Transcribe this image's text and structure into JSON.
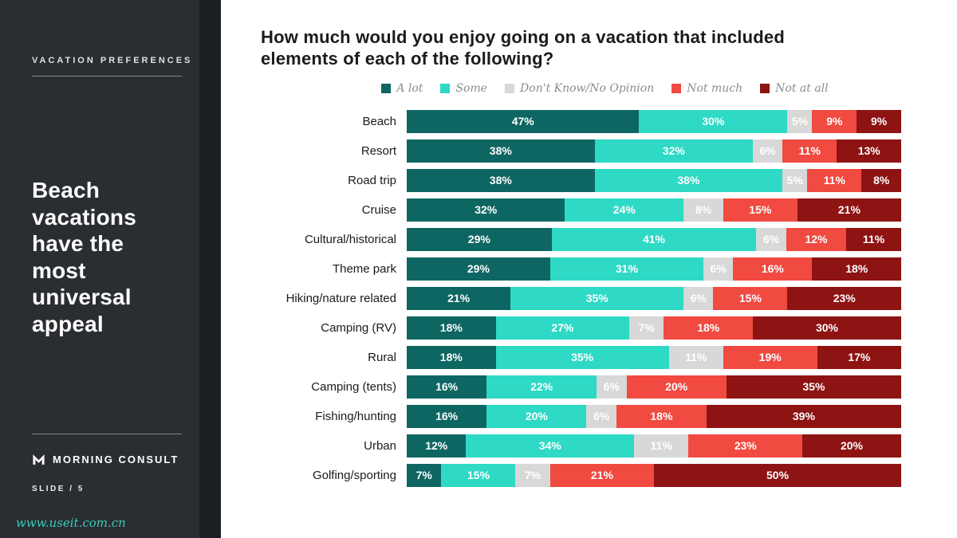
{
  "sidebar": {
    "eyebrow": "VACATION PREFERENCES",
    "headline": "Beach vacations have the most universal appeal",
    "brand": "MORNING CONSULT",
    "slide_text": "SLIDE / 5",
    "watermark": "www.useit.com.cn"
  },
  "main": {
    "title": "How much would you enjoy going on a vacation that included elements of each of the following?"
  },
  "chart_data": {
    "type": "bar",
    "orientation": "horizontal",
    "stacked": true,
    "value_format": "percent",
    "xlim": [
      0,
      100
    ],
    "legend_position": "top",
    "categories": [
      "Beach",
      "Resort",
      "Road trip",
      "Cruise",
      "Cultural/historical",
      "Theme park",
      "Hiking/nature related",
      "Camping (RV)",
      "Rural",
      "Camping (tents)",
      "Fishing/hunting",
      "Urban",
      "Golfing/sporting"
    ],
    "series": [
      {
        "name": "A lot",
        "color": "#0E6662",
        "values": [
          47,
          38,
          38,
          32,
          29,
          29,
          21,
          18,
          18,
          16,
          16,
          12,
          7
        ]
      },
      {
        "name": "Some",
        "color": "#2ED9C5",
        "values": [
          30,
          32,
          38,
          24,
          41,
          31,
          35,
          27,
          35,
          22,
          20,
          34,
          15
        ]
      },
      {
        "name": "Don't Know/No Opinion",
        "color": "#D8D8D8",
        "values": [
          5,
          6,
          5,
          8,
          6,
          6,
          6,
          7,
          11,
          6,
          6,
          11,
          7
        ]
      },
      {
        "name": "Not much",
        "color": "#F04A41",
        "values": [
          9,
          11,
          11,
          15,
          12,
          16,
          15,
          18,
          19,
          20,
          18,
          23,
          21
        ]
      },
      {
        "name": "Not at all",
        "color": "#8E1313",
        "values": [
          9,
          13,
          8,
          21,
          11,
          18,
          23,
          30,
          17,
          35,
          39,
          20,
          50
        ]
      }
    ]
  }
}
